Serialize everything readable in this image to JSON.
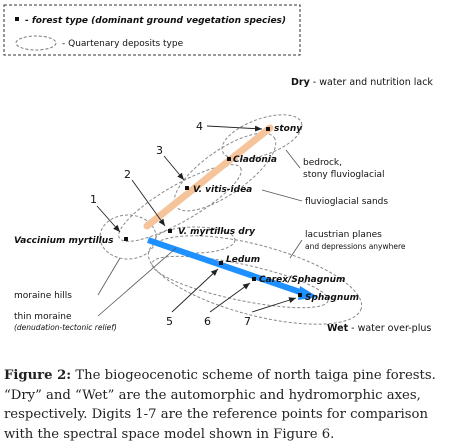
{
  "legend": {
    "forest_type": "- forest type (dominant ground vegetation species)",
    "deposits_type": "- Quartenary deposits type"
  },
  "axes": {
    "dry_word": "Dry",
    "dry_rest": " - water and nutrition lack",
    "wet_word": "Wet",
    "wet_rest": " - water over-plus"
  },
  "species": {
    "stony": "stony",
    "cladonia": "Cladonia",
    "vitis": "V. vitis-idea",
    "myrtillus_dry": "V. myrtillus dry",
    "vaccinium": "Vaccinium myrtillus",
    "ledum": "Ledum",
    "carex": "Carex/Sphagnum",
    "sphagnum": "Sphagnum"
  },
  "deposits": {
    "bedrock_1": "bedrock,",
    "bedrock_2": "stony fluvioglacial",
    "fluvio": "fluvioglacial sands",
    "lacustrian_1": "lacustrian planes",
    "lacustrian_2": "and depressions anywhere",
    "moraine_hills": "moraine hills",
    "thin_moraine": "thin moraine",
    "denudation": "(denudation-tectonic relief)"
  },
  "points": [
    "1",
    "2",
    "3",
    "4",
    "5",
    "6",
    "7"
  ],
  "colors": {
    "dry_axis": "#f5c49a",
    "wet_axis": "#1e90ff"
  },
  "caption": {
    "label": "Figure 2:",
    "text": " The biogeocenotic scheme of north taiga pine forests. “Dry” and “Wet” are the automorphic and hydromorphic axes, respectively. Digits 1-7 are the reference points for comparison with the spectral space model shown in Figure 6."
  }
}
